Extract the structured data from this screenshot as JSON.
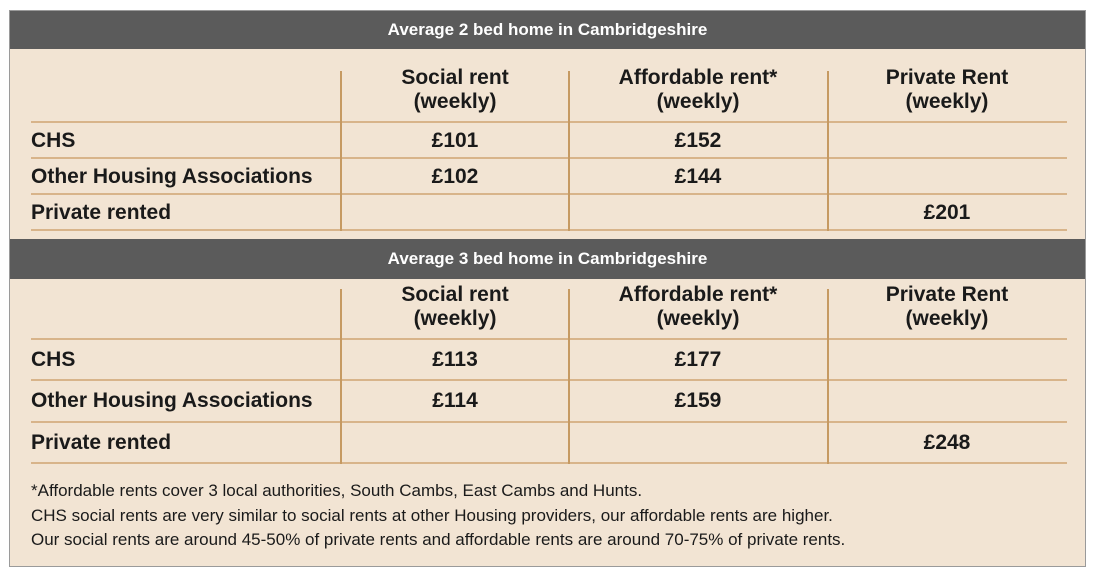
{
  "table1": {
    "title": "Average 2 bed home in Cambridgeshire",
    "headers": [
      "Social rent\n(weekly)",
      "Affordable rent*\n(weekly)",
      "Private Rent\n(weekly)"
    ],
    "rows": [
      {
        "label": "CHS",
        "social": "£101",
        "affordable": "£152",
        "private": ""
      },
      {
        "label": "Other Housing Associations",
        "social": "£102",
        "affordable": "£144",
        "private": ""
      },
      {
        "label": "Private rented",
        "social": "",
        "affordable": "",
        "private": "£201"
      }
    ]
  },
  "table2": {
    "title": "Average 3 bed home in Cambridgeshire",
    "headers": [
      "Social rent\n(weekly)",
      "Affordable rent*\n(weekly)",
      "Private Rent\n(weekly)"
    ],
    "rows": [
      {
        "label": "CHS",
        "social": "£113",
        "affordable": "£177",
        "private": ""
      },
      {
        "label": "Other Housing Associations",
        "social": "£114",
        "affordable": "£159",
        "private": ""
      },
      {
        "label": "Private rented",
        "social": "",
        "affordable": "",
        "private": "£248"
      }
    ]
  },
  "notes": [
    "*Affordable rents cover 3 local authorities, South Cambs, East Cambs and Hunts.",
    "CHS social rents are very similar to social rents at other Housing providers, our affordable rents are higher.",
    "Our social rents are around 45-50% of private rents and affordable rents are around 70-75% of private rents."
  ],
  "colors": {
    "panel_bg": "#f2e4d3",
    "banner_bg": "#5b5b5b",
    "rule": "#d8b48a"
  }
}
